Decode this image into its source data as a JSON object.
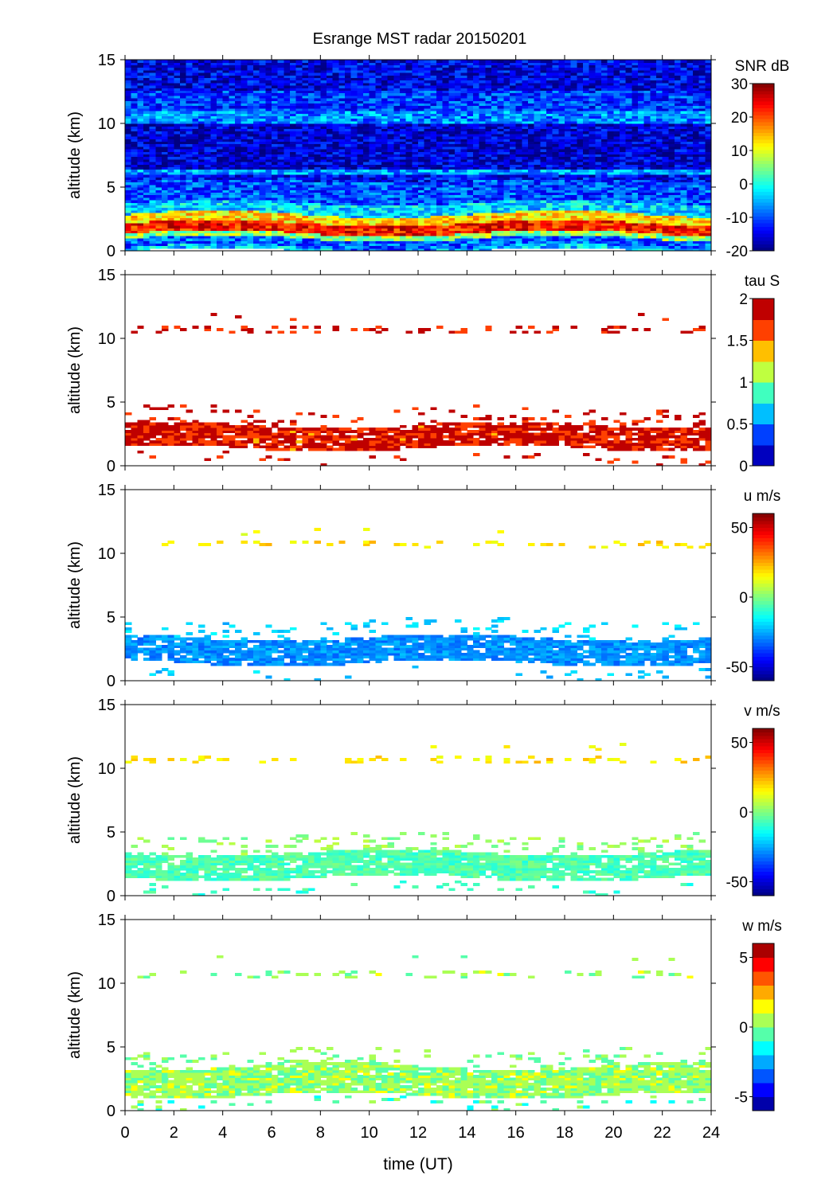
{
  "chart_data": {
    "type": "heatmap",
    "title": "Esrange MST radar 20150201",
    "xlabel": "time (UT)",
    "xlim": [
      0,
      24
    ],
    "xticks": [
      0,
      2,
      4,
      6,
      8,
      10,
      12,
      14,
      16,
      18,
      20,
      22,
      24
    ],
    "colormap": "jet",
    "panels": [
      {
        "name": "snr",
        "ylabel": "altitude (km)",
        "ylim": [
          0,
          15
        ],
        "yticks": [
          0,
          5,
          10,
          15
        ],
        "colorbar_label": "SNR dB",
        "clim": [
          -20,
          30
        ],
        "cticks": [
          -20,
          -10,
          0,
          10,
          20,
          30
        ],
        "levels": 0,
        "noise": 4,
        "profile_columns": [
          "alt_min_km",
          "alt_max_km",
          "value",
          "coverage"
        ],
        "profile": [
          [
            0,
            0.3,
            -4,
            1
          ],
          [
            0.3,
            1,
            -9,
            1
          ],
          [
            1,
            1.4,
            6,
            1
          ],
          [
            1.4,
            2.2,
            23,
            1
          ],
          [
            2.2,
            2.9,
            13,
            1
          ],
          [
            2.9,
            3.8,
            -3,
            1
          ],
          [
            3.8,
            5.5,
            -10,
            1
          ],
          [
            5.5,
            6.0,
            -14,
            1
          ],
          [
            6.0,
            6.4,
            -6,
            1
          ],
          [
            6.4,
            10,
            -16,
            1
          ],
          [
            10,
            11,
            -7,
            1
          ],
          [
            11,
            12.6,
            -11,
            1
          ],
          [
            12.6,
            15,
            -15,
            1
          ]
        ]
      },
      {
        "name": "tau",
        "ylabel": "altitude (km)",
        "ylim": [
          0,
          15
        ],
        "yticks": [
          0,
          5,
          10,
          15
        ],
        "colorbar_label": "tau S",
        "clim": [
          0,
          2
        ],
        "cticks": [
          0,
          0.5,
          1,
          1.5,
          2
        ],
        "levels": 8,
        "noise": 0.25,
        "profile": [
          [
            0.3,
            1,
            1.9,
            0.08
          ],
          [
            1.4,
            3.2,
            1.85,
            0.9
          ],
          [
            3.2,
            4.6,
            1.9,
            0.15
          ],
          [
            10.4,
            11.0,
            1.9,
            0.2
          ],
          [
            11.5,
            12,
            1.9,
            0.02
          ]
        ]
      },
      {
        "name": "u",
        "ylabel": "altitude (km)",
        "ylim": [
          0,
          15
        ],
        "yticks": [
          0,
          5,
          10,
          15
        ],
        "colorbar_label": "u m/s",
        "clim": [
          -60,
          60
        ],
        "cticks": [
          -50,
          0,
          50
        ],
        "levels": 0,
        "noise": 4,
        "profile": [
          [
            0.3,
            1,
            -22,
            0.08
          ],
          [
            1.4,
            3.4,
            -28,
            0.9
          ],
          [
            3.4,
            4.8,
            -20,
            0.15
          ],
          [
            10.4,
            11.0,
            18,
            0.2
          ],
          [
            11.5,
            12,
            15,
            0.02
          ]
        ]
      },
      {
        "name": "v",
        "ylabel": "altitude (km)",
        "ylim": [
          0,
          15
        ],
        "yticks": [
          0,
          5,
          10,
          15
        ],
        "colorbar_label": "v m/s",
        "clim": [
          -60,
          60
        ],
        "cticks": [
          -50,
          0,
          50
        ],
        "levels": 0,
        "noise": 4,
        "profile": [
          [
            0.3,
            1,
            -8,
            0.08
          ],
          [
            1.4,
            3.4,
            -6,
            0.9
          ],
          [
            3.4,
            4.8,
            2,
            0.15
          ],
          [
            10.4,
            11.0,
            18,
            0.2
          ],
          [
            11.5,
            12,
            15,
            0.02
          ]
        ]
      },
      {
        "name": "w",
        "ylabel": "altitude (km)",
        "ylim": [
          0,
          15
        ],
        "yticks": [
          0,
          5,
          10,
          15
        ],
        "colorbar_label": "w m/s",
        "clim": [
          -6,
          6
        ],
        "cticks": [
          -5,
          0,
          5
        ],
        "levels": 12,
        "noise": 0.6,
        "profile": [
          [
            0.3,
            1,
            -0.5,
            0.15
          ],
          [
            1.2,
            3.5,
            0.3,
            0.92
          ],
          [
            3.5,
            4.8,
            0,
            0.15
          ],
          [
            10.4,
            11.0,
            0.3,
            0.2
          ],
          [
            11.5,
            12.2,
            0,
            0.02
          ]
        ]
      }
    ]
  }
}
